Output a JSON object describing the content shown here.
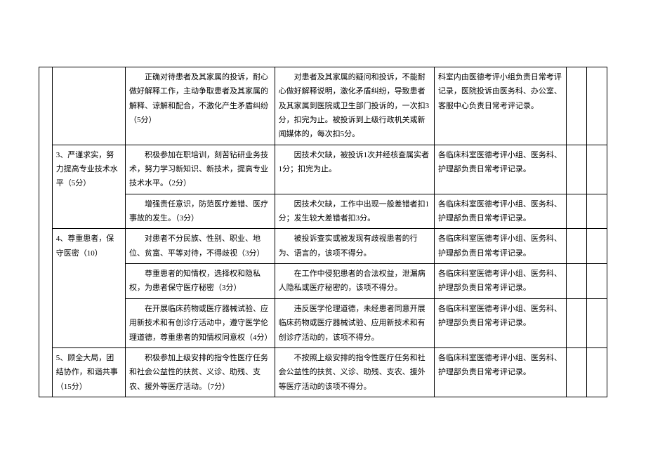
{
  "table": {
    "border_color": "#000000",
    "background_color": "#ffffff",
    "font_size": 11,
    "rows": [
      {
        "c1": "",
        "c2": "",
        "c3": "　　正确对待患者及其家属的投诉，耐心做好解释工作，主动争取患者及其家属的解释、谅解和配合，不激化产生矛盾纠纷（5分）",
        "c4": "　　对患者及其家属的疑问和投诉，不能耐心做好解释说明，激化矛盾纠纷，导致患者及其家属到医院或卫生部门投诉的，一次扣3分，扣完为止。被投诉到上级行政机关或新闻媒体的，每次扣5分。",
        "c5": "科室内由医德考评小组负责日常考评记录，医院投诉由医务科、办公室、客服中心负责日常考评记录。",
        "c6": "",
        "c7": ""
      },
      {
        "c1": "",
        "c2": "3、严谨求实，努力提高专业技术水平（5分）",
        "c3": "　　积极参加在职培训，刻苦钻研业务技术，努力学习新知识、新技术，提高专业技术水平。（2分）",
        "c4": "　　因技术欠缺，被投诉1次并经核查属实者1分；扣完为止。",
        "c5": "各临床科室医德考评小组、医务科、护理部负责日常考评记录。",
        "c6": "",
        "c7": ""
      },
      {
        "c1": "",
        "c2": "",
        "c3": "　　增强责任意识，防范医疗差错、医疗事故的发生。（3分）",
        "c4": "　　因技术欠缺，工作中出现一般差错者扣1分；发生较大差错者扣3分。",
        "c5": "各临床科室医德考评小组、医务科、护理部负责日常考评记录。",
        "c6": "",
        "c7": ""
      },
      {
        "c1": "",
        "c2": "4、尊重患者，保守医密（10）",
        "c3": "　　对患者不分民族、性别、职业、地位、贫富、平等对待，不得歧视（3分）",
        "c4": "　　被投诉查实或被发现有歧视患者的行为、语言的，该项不得分。",
        "c5": "各临床科室医德考评小组、医务科、护理部负责日常考评记录。",
        "c6": "",
        "c7": ""
      },
      {
        "c1": "",
        "c2": "",
        "c3": "　　尊重患者的知情权，选择权和隐私权，为患者保守医疗秘密（3分）",
        "c4": "　　在工作中侵犯患者的合法权益，泄漏病人隐私或医疗秘密的，该项不得分。",
        "c5": "各临床科室医德考评小组、医务科、护理部负责日常考评记录。",
        "c6": "",
        "c7": ""
      },
      {
        "c1": "",
        "c2": "",
        "c3": "　　在开展临床药物或医疗器械试验、应用新技术和有创诊疗活动中，遵守医学伦理道德，尊重患者的知情权同意权（4分）",
        "c4": "　　违反医学伦理道德，未经患者同意开展临床药物或医疗器械试验、应用新技术和有创诊疗活动的，该项不得分。",
        "c5": "各临床科室医德考评小组、医务科、护理部负责日常考评记录。",
        "c6": "",
        "c7": ""
      },
      {
        "c1": "",
        "c2": "5、顾全大局，团结协作，和谐共事（15分）",
        "c3": "　　积极参加上级安排的指令性医疗任务和社会公益性的扶贫、义诊、助残、支农、援外等医疗活动。（7分）",
        "c4": "　　不按照上级安排的指令性医疗任务和社会公益性的扶贫、义诊、助残、支农、援外等医疗活动的该项不得分。",
        "c5": "各临床科室医德考评小组、医务科、护理部负责日常考评记录。",
        "c6": "",
        "c7": ""
      }
    ]
  }
}
